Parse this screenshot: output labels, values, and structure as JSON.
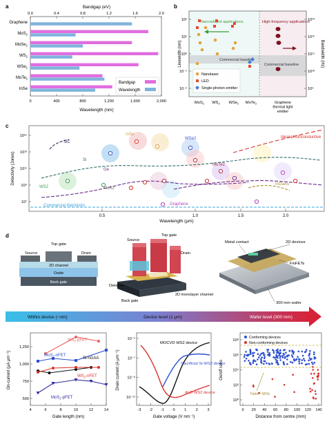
{
  "colors": {
    "bandgap": "#e040c8",
    "wavelength": "#6aa8d8",
    "red": "#d9302c",
    "blue": "#2d4fd0",
    "dark": "#111111",
    "arrowGradStart": "#39bfe8",
    "arrowGradEnd": "#d7233a"
  },
  "panel_a": {
    "letter": "a",
    "top_axis_label": "Bandgap (eV)",
    "bottom_axis_label": "Wavelength (nm)",
    "top_ticks": [
      "0.0",
      "0.4",
      "0.8",
      "1.2",
      "1.6",
      "2.0"
    ],
    "bottom_ticks": [
      "0",
      "400",
      "800",
      "1,200",
      "1,600",
      "2,000"
    ],
    "legend": {
      "bandgap": "Bandgap",
      "wavelength": "Wavelength"
    },
    "categories": [
      "Graphene",
      "MoS2",
      "MoSe2",
      "WS2",
      "WSe2",
      "MoTe2",
      "InSe"
    ],
    "bandgap_eV": [
      0,
      1.8,
      1.55,
      1.95,
      1.65,
      1.1,
      1.25
    ],
    "wavelength_nm": [
      1550,
      690,
      800,
      640,
      750,
      1130,
      990
    ]
  },
  "panel_b": {
    "letter": "b",
    "ylabel_left": "Linewidth (nm)",
    "ylabel_right": "Bandwidth (Hz)",
    "left_ticks": [
      "10²",
      "10¹",
      "10⁰",
      "10⁻¹",
      "10⁻²"
    ],
    "right_ticks": [
      "10¹³",
      "10¹²",
      "10¹¹",
      "10¹⁰",
      "10⁹"
    ],
    "narrow_label": "Narrowband applications",
    "hf_label": "High-frequency applications",
    "baseline_label": "Commercial baseline",
    "baseline_label_right": "Commercial baseline",
    "legend": {
      "nanolaser": "Nanolaser",
      "led": "LED",
      "spe": "Single-photon emitter"
    },
    "x_labels": [
      "MoS2",
      "WS2",
      "WSe2",
      "MoTe2",
      "Graphene thermal light emitter"
    ]
  },
  "panel_c": {
    "letter": "c",
    "ylabel": "Detectivity (Jones)",
    "xlabel": "Wavelength (μm)",
    "y_ticks": [
      "10¹⁵",
      "10¹³",
      "10¹¹",
      "10⁹",
      "10⁷"
    ],
    "x_ticks": [
      "0.5",
      "1.0",
      "1.5",
      "2.0"
    ],
    "labels": {
      "sic": "SiC",
      "si": "Si",
      "ge": "Ge",
      "ws2": "WS2",
      "mos2": "MoS2",
      "inse": "InSe",
      "wse2": "WSe2",
      "mote2": "MoTe2",
      "ideal": "Ideal photoconductive",
      "ingaas": "InGaAs",
      "graphene": "Graphene",
      "thermistor": "Commercial thermistor"
    }
  },
  "panel_d": {
    "letter": "d",
    "top_gate": "Top gate",
    "source": "Source",
    "drain": "Drain",
    "channel": "2D channel",
    "oxide": "Oxide",
    "back_gate": "Back gate",
    "source2": "Source",
    "top_gate2": "Top gate",
    "drain2": "Drain",
    "dielectric": "Dielectric",
    "back_gate2": "Back gate",
    "monolayer": "2D monolayer channel",
    "metal_contact": "Metal contact",
    "devices_2d": "2D devices",
    "finfets": "FinFETs",
    "wafer": "300 mm wafer",
    "scale_left": "Within device (~nm)",
    "scale_mid": "Device level (1 μm)",
    "scale_right": "Wafer level (300 mm)"
  },
  "chart_data": [
    {
      "type": "line",
      "xlabel": "Gate length (nm)",
      "ylabel": "On-current (μA μm⁻¹)",
      "x_ticks": [
        "4",
        "6",
        "8",
        "10",
        "12",
        "14"
      ],
      "y_ticks": [
        "1,250",
        "1,000",
        "750",
        "500"
      ],
      "ylim": [
        400,
        1450
      ],
      "xlim": [
        4,
        14
      ],
      "series": [
        {
          "name": "WS2-pFET",
          "x": [
            6,
            10,
            13
          ],
          "y": [
            1150,
            1390,
            1330
          ]
        },
        {
          "name": "MoS2-nFET",
          "x": [
            5,
            7,
            10,
            14
          ],
          "y": [
            1040,
            1080,
            1050,
            1200
          ]
        },
        {
          "name": "Si-nGAA",
          "x": [
            5,
            6.5,
            10,
            12
          ],
          "y": [
            900,
            870,
            920,
            950
          ]
        },
        {
          "name": "WS2-nFET",
          "x": [
            5,
            7,
            10,
            13
          ],
          "y": [
            880,
            940,
            950,
            950
          ]
        },
        {
          "name": "MoS2-pFET",
          "x": [
            5,
            7,
            10,
            12,
            14
          ],
          "y": [
            580,
            720,
            770,
            750,
            700
          ]
        }
      ]
    },
    {
      "type": "line",
      "xlabel": "Gate voltage (V nm⁻¹)",
      "ylabel": "Drain current (A μm⁻¹)",
      "x_ticks": [
        "-3",
        "-2",
        "-1",
        "0",
        "1",
        "2",
        "3"
      ],
      "y_ticks": [
        "10⁻⁵",
        "10⁻⁷",
        "10⁻⁹",
        "10⁻¹¹"
      ],
      "log_y": true,
      "annotations": [
        "MOCVD WS2 device",
        "Sacrificial Si-WS2 device",
        "ALD WS2 device"
      ]
    },
    {
      "type": "scatter",
      "xlabel": "Distance from centre (mm)",
      "ylabel": "On/off ratio",
      "x_ticks": [
        "0",
        "20",
        "40",
        "60",
        "80",
        "100",
        "120",
        "140"
      ],
      "y_ticks": [
        "10⁸",
        "10⁶",
        "10⁴",
        "10²",
        "10⁰"
      ],
      "legend": [
        "Conforming devices",
        "Non-conforming devices"
      ],
      "annotation": "Yield ~95%"
    }
  ]
}
